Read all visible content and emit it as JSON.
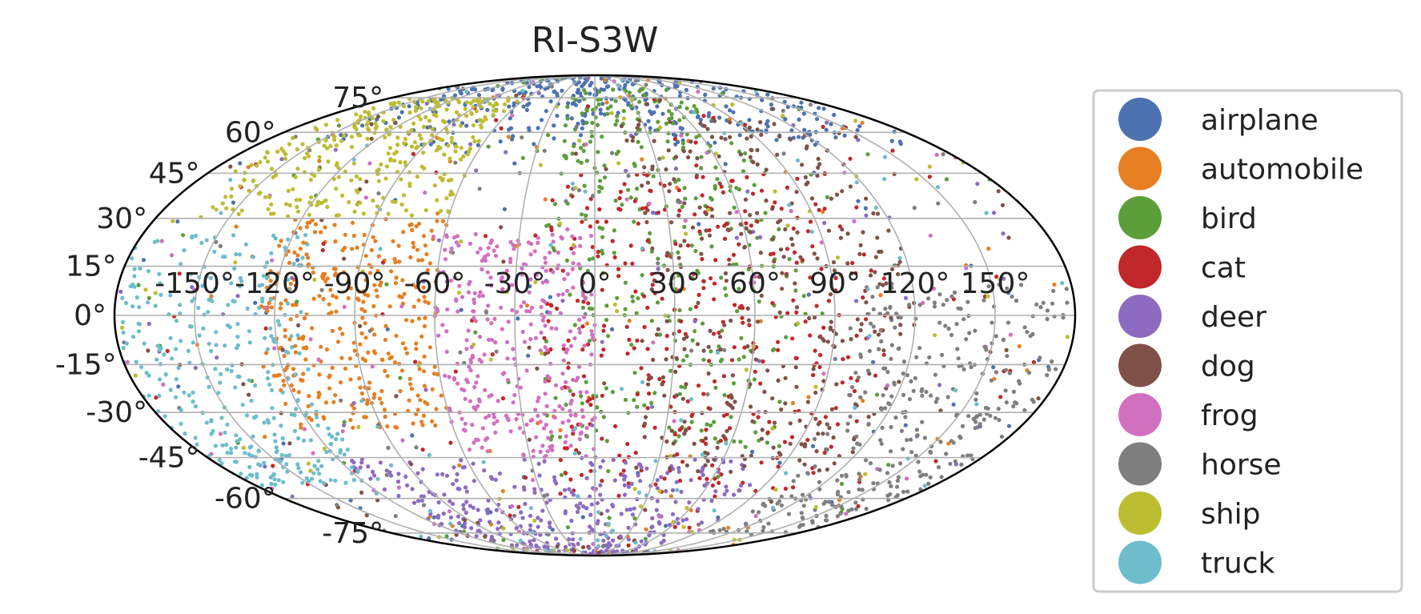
{
  "chart_data": {
    "type": "scatter",
    "projection": "mollweide",
    "title": "RI-S3W",
    "xlabel": "",
    "ylabel": "",
    "grid": true,
    "x_ticks": [
      "-150°",
      "-120°",
      "-90°",
      "-60°",
      "-30°",
      "0°",
      "30°",
      "60°",
      "90°",
      "120°",
      "150°"
    ],
    "y_ticks": [
      "75°",
      "60°",
      "45°",
      "30°",
      "15°",
      "0°",
      "-15°",
      "-30°",
      "-45°",
      "-60°",
      "-75°"
    ],
    "xlim_degrees": [
      -180,
      180
    ],
    "ylim_degrees": [
      -90,
      90
    ],
    "legend_position": "right",
    "series": [
      {
        "name": "airplane",
        "color": "#4c72b0",
        "lon_range": [
          -150,
          170
        ],
        "lat_range": [
          55,
          88
        ]
      },
      {
        "name": "automobile",
        "color": "#e57f22",
        "lon_range": [
          -125,
          -60
        ],
        "lat_range": [
          -35,
          30
        ]
      },
      {
        "name": "bird",
        "color": "#5c9e3a",
        "lon_range": [
          -20,
          80
        ],
        "lat_range": [
          -40,
          80
        ]
      },
      {
        "name": "cat",
        "color": "#c0282b",
        "lon_range": [
          -20,
          110
        ],
        "lat_range": [
          -60,
          45
        ]
      },
      {
        "name": "deer",
        "color": "#8c6bc1",
        "lon_range": [
          -120,
          80
        ],
        "lat_range": [
          -88,
          -45
        ]
      },
      {
        "name": "dog",
        "color": "#7f5148",
        "lon_range": [
          20,
          120
        ],
        "lat_range": [
          -50,
          65
        ]
      },
      {
        "name": "frog",
        "color": "#d270c0",
        "lon_range": [
          -60,
          0
        ],
        "lat_range": [
          -45,
          25
        ]
      },
      {
        "name": "horse",
        "color": "#7f7f7f",
        "lon_range": [
          100,
          178
        ],
        "lat_range": [
          -75,
          10
        ]
      },
      {
        "name": "ship",
        "color": "#bcbd33",
        "lon_range": [
          -170,
          -60
        ],
        "lat_range": [
          30,
          75
        ]
      },
      {
        "name": "truck",
        "color": "#6dbdcc",
        "lon_range": [
          -180,
          -110
        ],
        "lat_range": [
          -55,
          25
        ]
      }
    ]
  }
}
